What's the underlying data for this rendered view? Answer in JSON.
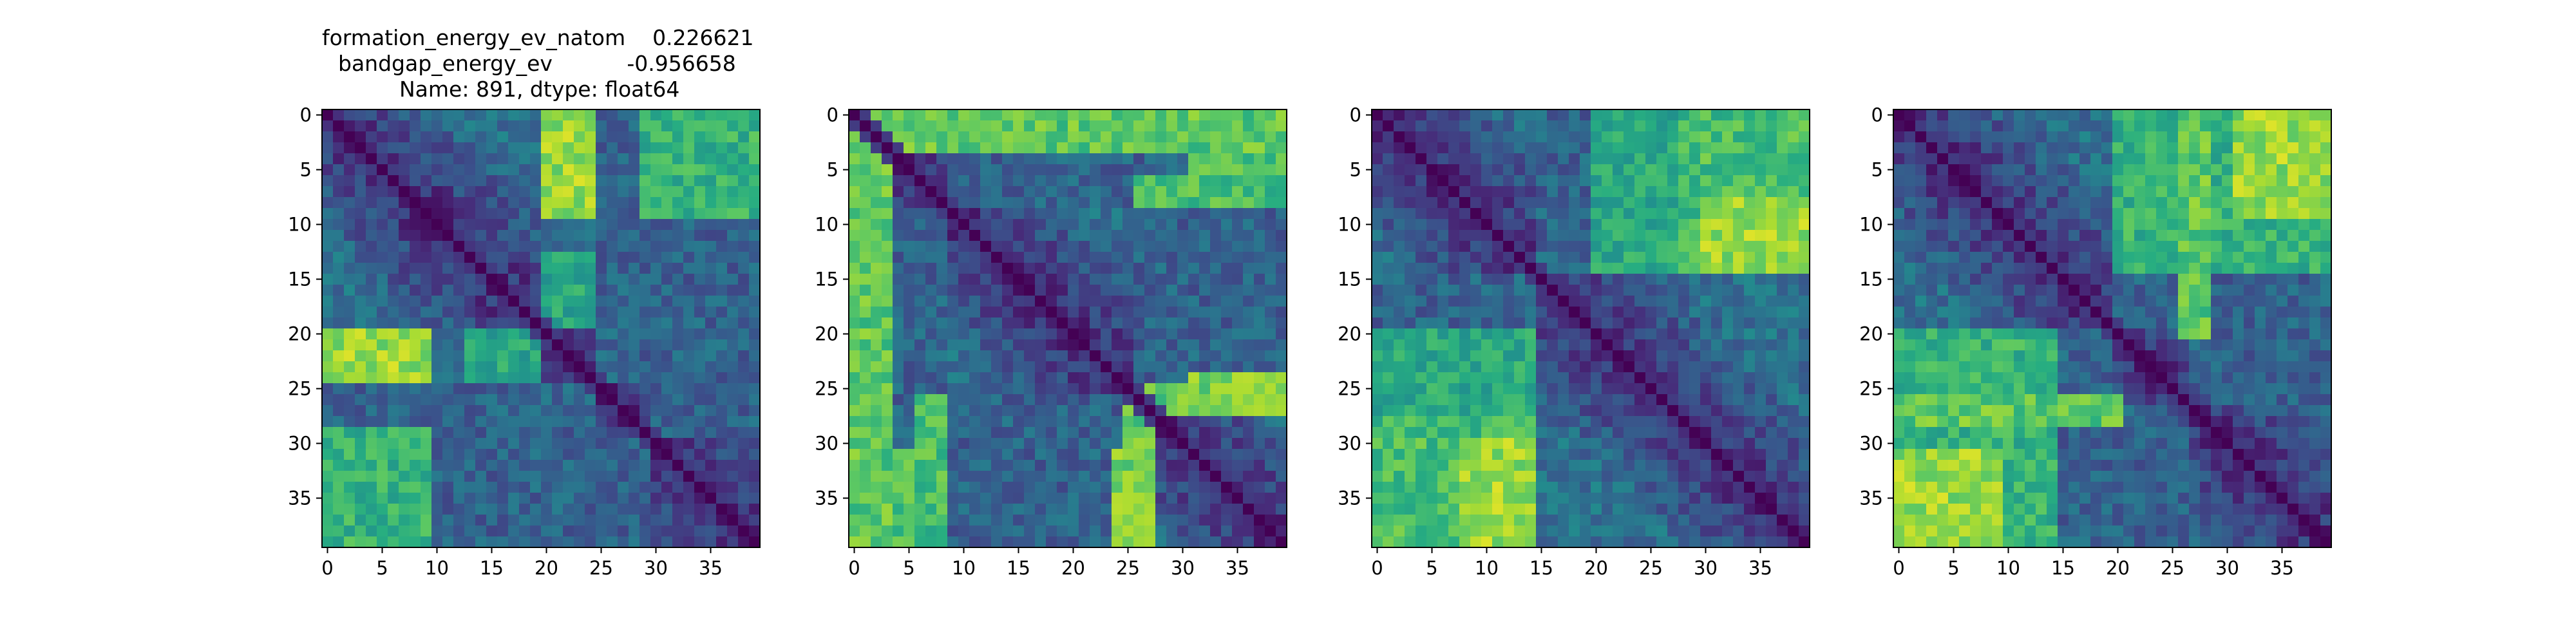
{
  "title": {
    "lines": [
      "formation_energy_ev_natom    0.226621",
      "bandgap_energy_ev           -0.956658",
      "Name: 891, dtype: float64"
    ]
  },
  "chart_data": [
    {
      "type": "heatmap",
      "title": "",
      "size": 40,
      "colormap": "viridis",
      "x_ticks": [
        0,
        5,
        10,
        15,
        20,
        25,
        30,
        35
      ],
      "y_ticks": [
        0,
        5,
        10,
        15,
        20,
        25,
        30,
        35
      ],
      "value_range": [
        0,
        1
      ],
      "diagonal": 0,
      "blocks": [
        [
          0,
          19
        ],
        [
          20,
          24
        ],
        [
          25,
          29
        ],
        [
          30,
          39
        ]
      ],
      "bright_regions": [
        {
          "rows": [
            0,
            8
          ],
          "cols": [
            20,
            24
          ],
          "level": 0.85
        },
        {
          "rows": [
            0,
            8
          ],
          "cols": [
            30,
            38
          ],
          "level": 0.65
        },
        {
          "rows": [
            20,
            24
          ],
          "cols": [
            0,
            9
          ],
          "level": 0.8
        },
        {
          "rows": [
            20,
            24
          ],
          "cols": [
            13,
            19
          ],
          "level": 0.6
        },
        {
          "rows": [
            29,
            39
          ],
          "cols": [
            0,
            9
          ],
          "level": 0.65
        }
      ]
    },
    {
      "type": "heatmap",
      "title": "",
      "size": 40,
      "colormap": "viridis",
      "x_ticks": [
        0,
        5,
        10,
        15,
        20,
        25,
        30,
        35
      ],
      "y_ticks": [
        0,
        5,
        10,
        15,
        20,
        25,
        30,
        35
      ],
      "value_range": [
        0,
        1
      ],
      "diagonal": 0,
      "blocks": [
        [
          0,
          2
        ],
        [
          3,
          8
        ],
        [
          9,
          25
        ],
        [
          26,
          39
        ]
      ],
      "bright_regions": [
        {
          "rows": [
            0,
            3
          ],
          "cols": [
            0,
            39
          ],
          "level": 0.75
        },
        {
          "rows": [
            0,
            39
          ],
          "cols": [
            0,
            1
          ],
          "level": 0.75
        },
        {
          "rows": [
            0,
            8
          ],
          "cols": [
            31,
            39
          ],
          "level": 0.7
        },
        {
          "rows": [
            24,
            27
          ],
          "cols": [
            31,
            39
          ],
          "level": 0.8
        },
        {
          "rows": [
            26,
            39
          ],
          "cols": [
            6,
            8
          ],
          "level": 0.7
        },
        {
          "rows": [
            26,
            39
          ],
          "cols": [
            25,
            27
          ],
          "level": 0.75
        }
      ]
    },
    {
      "type": "heatmap",
      "title": "",
      "size": 40,
      "colormap": "viridis",
      "x_ticks": [
        0,
        5,
        10,
        15,
        20,
        25,
        30,
        35
      ],
      "y_ticks": [
        0,
        5,
        10,
        15,
        20,
        25,
        30,
        35
      ],
      "value_range": [
        0,
        1
      ],
      "diagonal": 0,
      "blocks": [
        [
          0,
          14
        ],
        [
          15,
          39
        ]
      ],
      "bright_regions": [
        {
          "rows": [
            0,
            14
          ],
          "cols": [
            20,
            39
          ],
          "level": 0.6
        },
        {
          "rows": [
            8,
            14
          ],
          "cols": [
            30,
            39
          ],
          "level": 0.85
        },
        {
          "rows": [
            28,
            39
          ],
          "cols": [
            0,
            14
          ],
          "level": 0.7
        },
        {
          "rows": [
            30,
            39
          ],
          "cols": [
            8,
            14
          ],
          "level": 0.85
        }
      ]
    },
    {
      "type": "heatmap",
      "title": "",
      "size": 40,
      "colormap": "viridis",
      "x_ticks": [
        0,
        5,
        10,
        15,
        20,
        25,
        30,
        35
      ],
      "y_ticks": [
        0,
        5,
        10,
        15,
        20,
        25,
        30,
        35
      ],
      "value_range": [
        0,
        1
      ],
      "diagonal": 0,
      "blocks": [
        [
          0,
          19
        ],
        [
          20,
          26
        ],
        [
          27,
          39
        ]
      ],
      "bright_regions": [
        {
          "rows": [
            0,
            14
          ],
          "cols": [
            20,
            39
          ],
          "level": 0.65
        },
        {
          "rows": [
            0,
            8
          ],
          "cols": [
            33,
            39
          ],
          "level": 0.85
        },
        {
          "rows": [
            26,
            28
          ],
          "cols": [
            0,
            20
          ],
          "level": 0.75
        },
        {
          "rows": [
            31,
            39
          ],
          "cols": [
            0,
            9
          ],
          "level": 0.85
        }
      ]
    }
  ]
}
